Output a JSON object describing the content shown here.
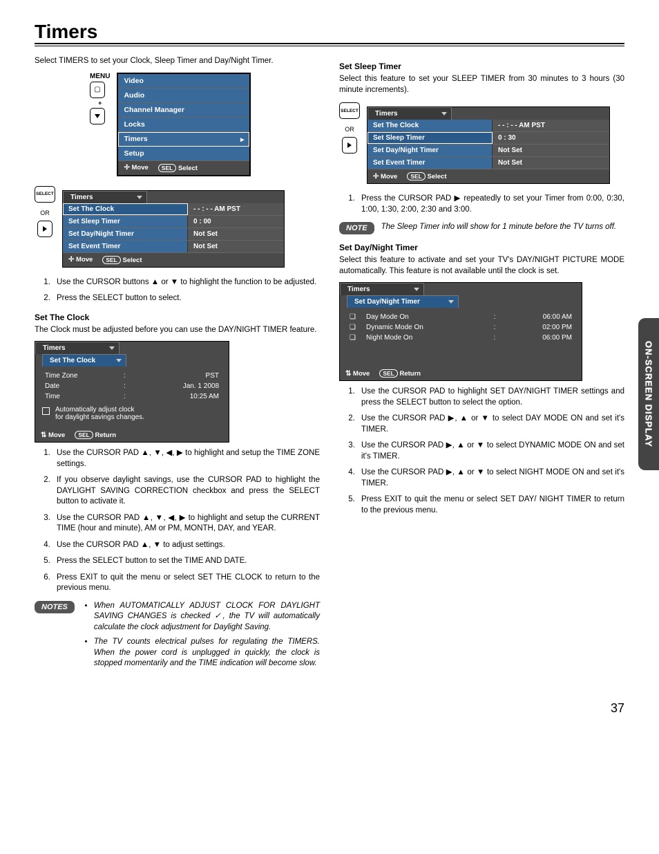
{
  "page": {
    "title": "Timers",
    "number": "37",
    "side_tab": "ON-SCREEN DISPLAY"
  },
  "left": {
    "intro": "Select TIMERS to set your Clock, Sleep Timer and Day/Night Timer.",
    "menu_label": "MENU",
    "main_menu": {
      "items": [
        "Video",
        "Audio",
        "Channel Manager",
        "Locks",
        "Timers",
        "Setup"
      ],
      "selected_index": 4,
      "footer_move": "Move",
      "footer_sel": "SEL",
      "footer_select": "Select"
    },
    "timers_table": {
      "header": "Timers",
      "side_select": "SELECT",
      "side_or": "OR",
      "rows": [
        {
          "label": "Set The Clock",
          "value": "- - : - - AM PST",
          "selected": true
        },
        {
          "label": "Set Sleep Timer",
          "value": "0 : 00"
        },
        {
          "label": "Set Day/Night Timer",
          "value": "Not Set"
        },
        {
          "label": "Set Event Timer",
          "value": "Not Set"
        }
      ],
      "footer_move": "Move",
      "footer_sel": "SEL",
      "footer_select": "Select"
    },
    "steps_a": [
      "Use the CURSOR buttons ▲ or ▼ to highlight the function to be adjusted.",
      "Press the SELECT button to select."
    ],
    "set_clock_head": "Set The Clock",
    "set_clock_desc": "The Clock must be adjusted before you can use the DAY/NIGHT TIMER feature.",
    "clock_panel": {
      "header": "Timers",
      "sub": "Set The Clock",
      "tz_label": "Time Zone",
      "tz_value": "PST",
      "date_label": "Date",
      "date_value": "Jan. 1 2008",
      "time_label": "Time",
      "time_value": "10:25 AM",
      "dst_line1": "Automatically adjust clock",
      "dst_line2": "for daylight savings changes.",
      "footer_move": "Move",
      "footer_sel": "SEL",
      "footer_return": "Return"
    },
    "steps_b": [
      "Use the CURSOR PAD ▲, ▼, ◀, ▶ to highlight and setup the TIME ZONE settings.",
      "If you observe daylight savings, use the CURSOR PAD to highlight the DAYLIGHT SAVING CORRECTION checkbox and press the SELECT button to activate it.",
      "Use the CURSOR PAD ▲, ▼, ◀, ▶ to highlight and setup the CURRENT TIME (hour and minute), AM or PM, MONTH, DAY, and YEAR.",
      "Use the CURSOR PAD ▲, ▼ to adjust settings.",
      "Press the SELECT button to set the TIME AND DATE.",
      "Press EXIT to quit the menu or select SET THE CLOCK to return to the previous menu."
    ],
    "notes_badge": "NOTES",
    "notes": [
      "When AUTOMATICALLY ADJUST CLOCK FOR DAYLIGHT SAVING CHANGES is checked ✓, the TV will automatically calculate the clock adjustment for Daylight Saving.",
      "The TV counts electrical pulses for regulating the TIMERS. When the power cord is unplugged in quickly, the clock is stopped momentarily and the TIME indication will become slow."
    ]
  },
  "right": {
    "sleep_head": "Set Sleep Timer",
    "sleep_desc": "Select this feature to set your SLEEP TIMER from 30 minutes to 3 hours (30 minute increments).",
    "timers_table": {
      "header": "Timers",
      "side_select": "SELECT",
      "side_or": "OR",
      "rows": [
        {
          "label": "Set The Clock",
          "value": "- - : - - AM PST"
        },
        {
          "label": "Set Sleep Timer",
          "value": "0 : 30",
          "selected": true
        },
        {
          "label": "Set Day/Night Timer",
          "value": "Not Set"
        },
        {
          "label": "Set Event Timer",
          "value": "Not Set"
        }
      ],
      "footer_move": "Move",
      "footer_sel": "SEL",
      "footer_select": "Select"
    },
    "sleep_step": "Press the CURSOR PAD ▶ repeatedly to set your Timer from 0:00, 0:30, 1:00, 1:30, 2:00, 2:30 and 3:00.",
    "note_badge": "NOTE",
    "note_text": "The Sleep Timer info will show for 1 minute before the TV turns off.",
    "dn_head": "Set Day/Night Timer",
    "dn_desc": "Select this feature to activate and set your TV's DAY/NIGHT PICTURE MODE automatically. This feature is not available until the clock is set.",
    "dn_panel": {
      "header": "Timers",
      "sub": "Set Day/Night Timer",
      "rows": [
        {
          "label": "Day  Mode On",
          "value": "06:00 AM"
        },
        {
          "label": "Dynamic Mode On",
          "value": "02:00 PM"
        },
        {
          "label": "Night Mode On",
          "value": "06:00 PM"
        }
      ],
      "footer_move": "Move",
      "footer_sel": "SEL",
      "footer_return": "Return"
    },
    "dn_steps": [
      "Use the CURSOR PAD to highlight SET DAY/NIGHT TIMER settings and press the SELECT button to select the option.",
      "Use the CURSOR PAD ▶, ▲ or ▼ to select DAY MODE ON and set it's TIMER.",
      "Use the CURSOR PAD ▶, ▲ or ▼ to select DYNAMIC MODE ON and set it's TIMER.",
      "Use the CURSOR PAD ▶, ▲ or ▼ to select NIGHT MODE ON and set it's TIMER.",
      "Press EXIT to quit the menu or select SET DAY/ NIGHT TIMER to return to the previous menu."
    ]
  }
}
